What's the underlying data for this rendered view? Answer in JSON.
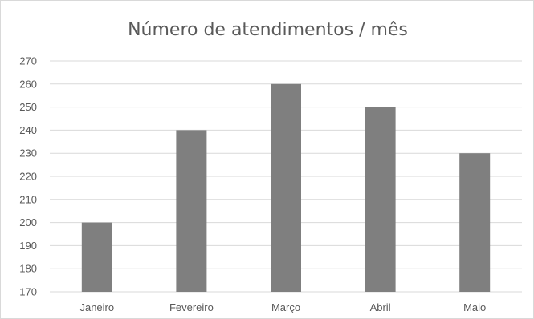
{
  "chart_data": {
    "type": "bar",
    "title": "Número de atendimentos / mês",
    "categories": [
      "Janeiro",
      "Fevereiro",
      "Março",
      "Abril",
      "Maio"
    ],
    "values": [
      200,
      240,
      260,
      250,
      230
    ],
    "ylim": [
      170,
      270
    ],
    "yticks": [
      170,
      180,
      190,
      200,
      210,
      220,
      230,
      240,
      250,
      260,
      270
    ],
    "grid": true,
    "legend": "none",
    "bar_color": "#7f7f7f",
    "grid_color": "#d9d9d9",
    "text_color": "#595959"
  }
}
